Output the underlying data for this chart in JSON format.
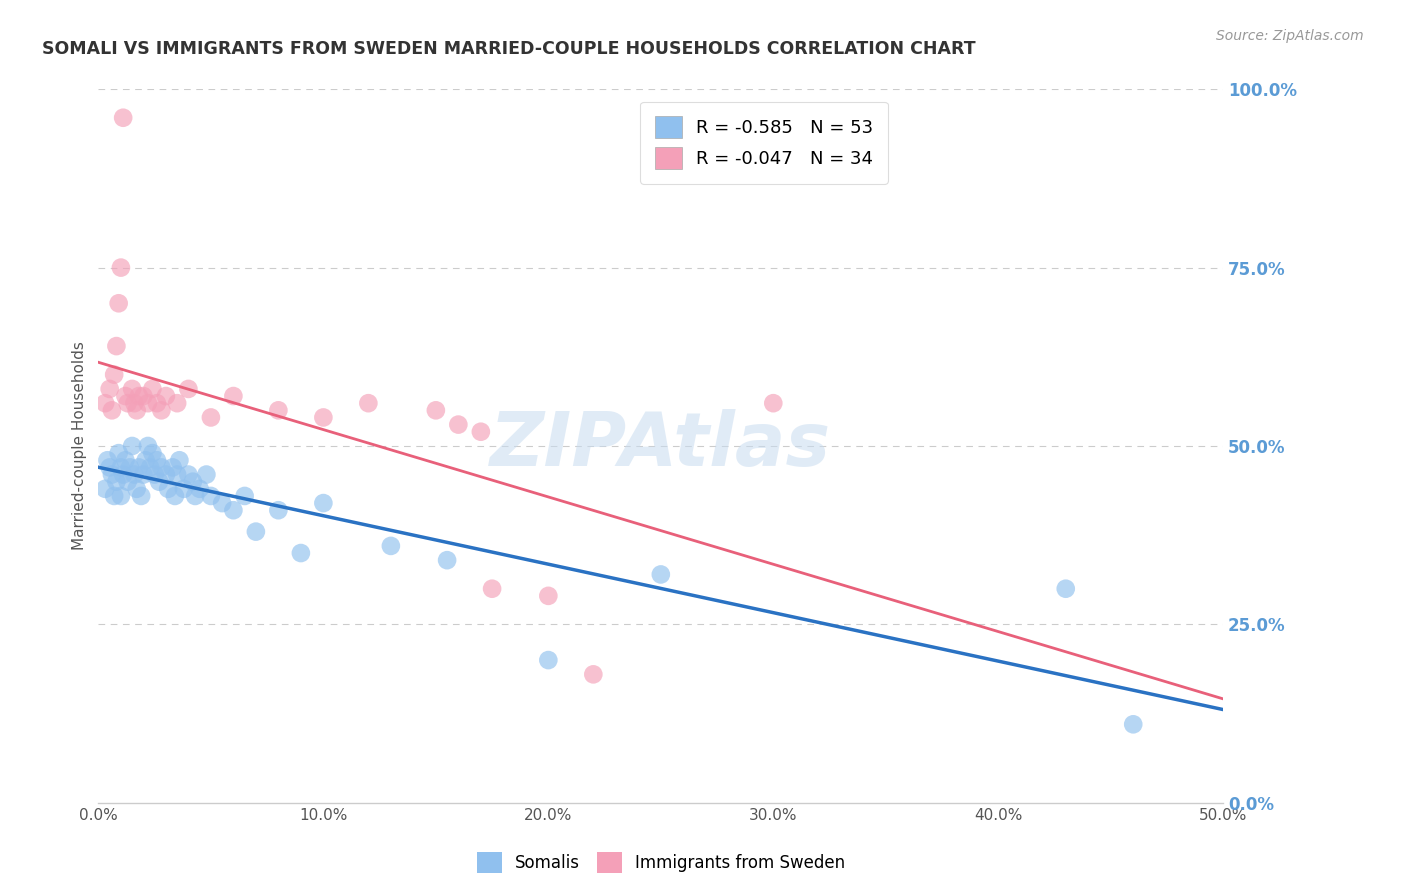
{
  "title": "SOMALI VS IMMIGRANTS FROM SWEDEN MARRIED-COUPLE HOUSEHOLDS CORRELATION CHART",
  "source": "Source: ZipAtlas.com",
  "ylabel": "Married-couple Households",
  "xlabel_ticks": [
    "0.0%",
    "10.0%",
    "20.0%",
    "30.0%",
    "40.0%",
    "50.0%"
  ],
  "xlabel_vals": [
    0.0,
    0.1,
    0.2,
    0.3,
    0.4,
    0.5
  ],
  "ylabel_ticks": [
    "0.0%",
    "25.0%",
    "50.0%",
    "75.0%",
    "100.0%"
  ],
  "ylabel_vals": [
    0.0,
    0.25,
    0.5,
    0.75,
    1.0
  ],
  "xlim": [
    0.0,
    0.5
  ],
  "ylim": [
    0.0,
    1.0
  ],
  "somali_R": -0.585,
  "somali_N": 53,
  "sweden_R": -0.047,
  "sweden_N": 34,
  "somali_color": "#90C0EE",
  "sweden_color": "#F4A0B8",
  "somali_line_color": "#2A72C3",
  "sweden_line_color": "#E8607A",
  "background_color": "#FFFFFF",
  "title_color": "#333333",
  "axis_label_color": "#555555",
  "right_tick_color": "#5B9BD5",
  "grid_color": "#CCCCCC",
  "somali_x": [
    0.003,
    0.004,
    0.005,
    0.006,
    0.007,
    0.008,
    0.009,
    0.01,
    0.01,
    0.011,
    0.012,
    0.013,
    0.014,
    0.015,
    0.016,
    0.017,
    0.018,
    0.019,
    0.02,
    0.021,
    0.022,
    0.023,
    0.024,
    0.025,
    0.026,
    0.027,
    0.028,
    0.03,
    0.031,
    0.033,
    0.034,
    0.035,
    0.036,
    0.038,
    0.04,
    0.042,
    0.043,
    0.045,
    0.048,
    0.05,
    0.055,
    0.06,
    0.065,
    0.07,
    0.08,
    0.09,
    0.1,
    0.13,
    0.155,
    0.2,
    0.25,
    0.43,
    0.46
  ],
  "somali_y": [
    0.44,
    0.48,
    0.47,
    0.46,
    0.43,
    0.45,
    0.49,
    0.47,
    0.43,
    0.46,
    0.48,
    0.45,
    0.47,
    0.5,
    0.46,
    0.44,
    0.47,
    0.43,
    0.46,
    0.48,
    0.5,
    0.47,
    0.49,
    0.46,
    0.48,
    0.45,
    0.47,
    0.46,
    0.44,
    0.47,
    0.43,
    0.46,
    0.48,
    0.44,
    0.46,
    0.45,
    0.43,
    0.44,
    0.46,
    0.43,
    0.42,
    0.41,
    0.43,
    0.38,
    0.41,
    0.35,
    0.42,
    0.36,
    0.34,
    0.2,
    0.32,
    0.3,
    0.11
  ],
  "sweden_x": [
    0.003,
    0.005,
    0.006,
    0.007,
    0.008,
    0.009,
    0.01,
    0.011,
    0.012,
    0.013,
    0.015,
    0.016,
    0.017,
    0.018,
    0.02,
    0.022,
    0.024,
    0.026,
    0.028,
    0.03,
    0.035,
    0.04,
    0.05,
    0.06,
    0.08,
    0.1,
    0.12,
    0.15,
    0.16,
    0.175,
    0.2,
    0.22,
    0.3,
    0.17
  ],
  "sweden_y": [
    0.56,
    0.58,
    0.55,
    0.6,
    0.64,
    0.7,
    0.75,
    0.96,
    0.57,
    0.56,
    0.58,
    0.56,
    0.55,
    0.57,
    0.57,
    0.56,
    0.58,
    0.56,
    0.55,
    0.57,
    0.56,
    0.58,
    0.54,
    0.57,
    0.55,
    0.54,
    0.56,
    0.55,
    0.53,
    0.3,
    0.29,
    0.18,
    0.56,
    0.52
  ]
}
